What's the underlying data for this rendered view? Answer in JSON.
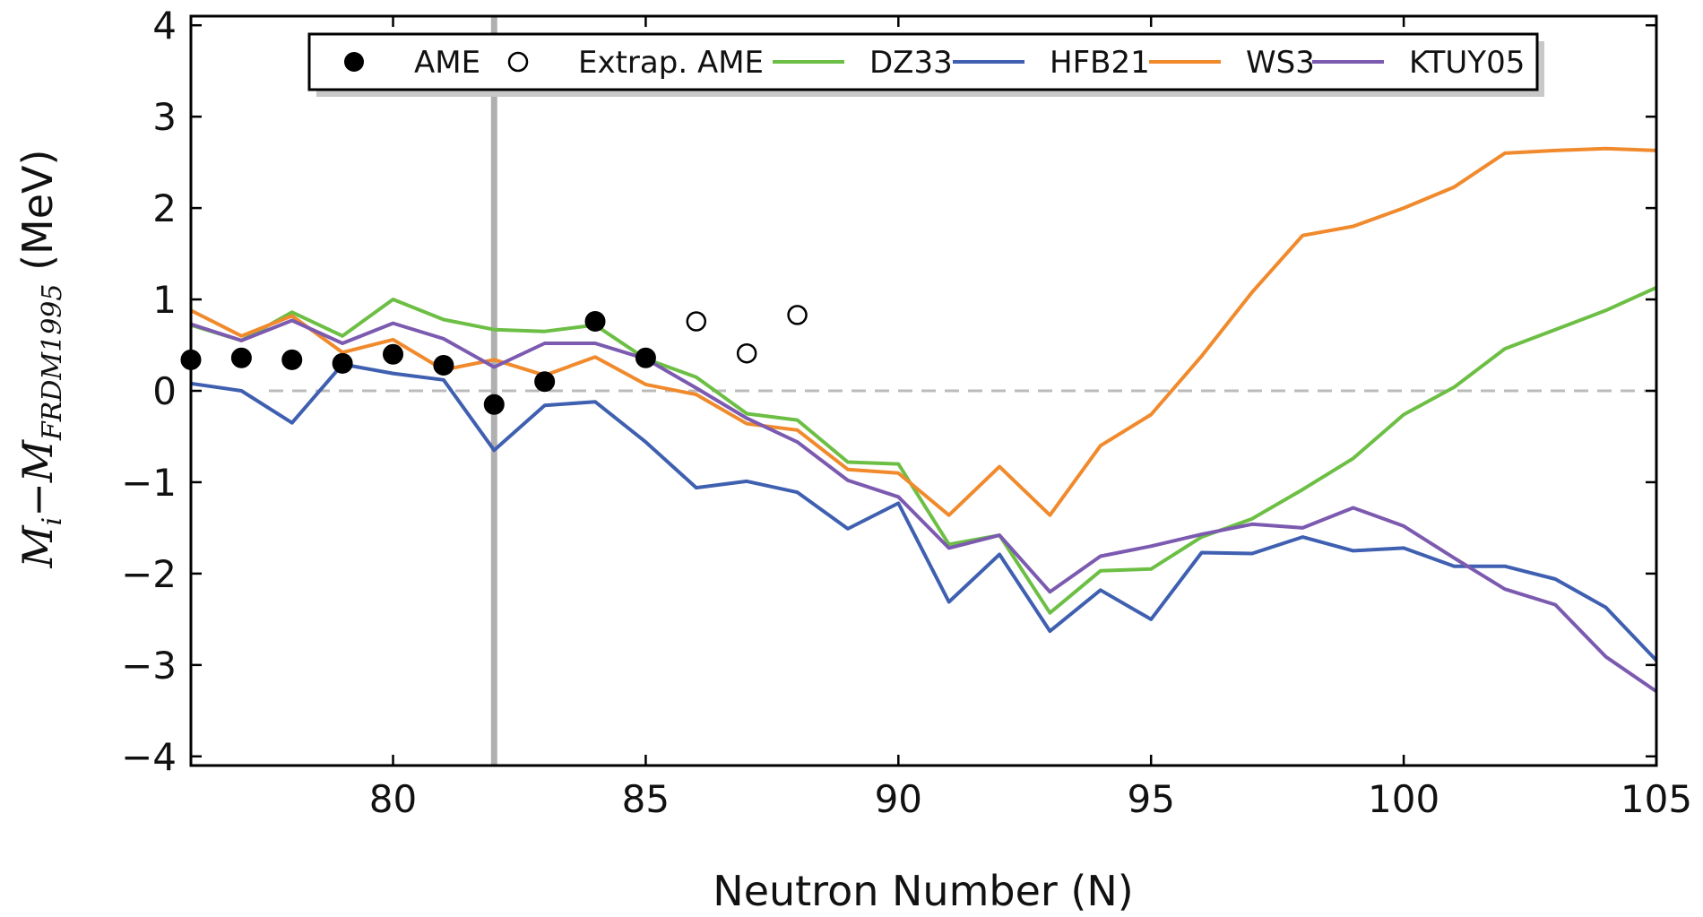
{
  "chart_data": {
    "type": "line",
    "xlabel": "Neutron Number (N)",
    "ylabel": {
      "M": "M",
      "i": "i",
      "minus": "−",
      "sub": "FRDM1995",
      "unit": " (MeV)"
    },
    "xlim": [
      76,
      105
    ],
    "ylim": [
      -4.1,
      4.1
    ],
    "x_ticks": [
      80,
      85,
      90,
      95,
      100,
      105
    ],
    "y_ticks": [
      -4,
      -3,
      -2,
      -1,
      0,
      1,
      2,
      3,
      4
    ],
    "x_tick_labels": [
      "80",
      "85",
      "90",
      "95",
      "100",
      "105"
    ],
    "y_tick_labels": [
      "−4",
      "−3",
      "−2",
      "−1",
      "0",
      "1",
      "2",
      "3",
      "4"
    ],
    "zero_line": {
      "y": 0,
      "color": "#bbbbbb",
      "style": "dashed"
    },
    "vertical_line": {
      "x": 82,
      "color": "#b0b0b0"
    },
    "legend": {
      "placement": "top"
    },
    "scatter_series": [
      {
        "name": "AME",
        "marker": "filled-circle",
        "color": "#000000",
        "points": [
          [
            76,
            0.34
          ],
          [
            77,
            0.36
          ],
          [
            78,
            0.34
          ],
          [
            79,
            0.3
          ],
          [
            80,
            0.4
          ],
          [
            81,
            0.28
          ],
          [
            82,
            -0.15
          ],
          [
            83,
            0.1
          ],
          [
            84,
            0.76
          ],
          [
            85,
            0.36
          ]
        ]
      },
      {
        "name": "Extrap. AME",
        "marker": "open-circle",
        "color": "#000000",
        "points": [
          [
            86,
            0.76
          ],
          [
            87,
            0.41
          ],
          [
            88,
            0.83
          ]
        ]
      }
    ],
    "x": [
      76,
      77,
      78,
      79,
      80,
      81,
      82,
      83,
      84,
      85,
      86,
      87,
      88,
      89,
      90,
      91,
      92,
      93,
      94,
      95,
      96,
      97,
      98,
      99,
      100,
      101,
      102,
      103,
      104,
      105
    ],
    "series": [
      {
        "name": "DZ33",
        "color": "#6cbf44",
        "values": [
          0.72,
          0.55,
          0.86,
          0.6,
          1.0,
          0.78,
          0.67,
          0.65,
          0.72,
          0.35,
          0.15,
          -0.25,
          -0.32,
          -0.78,
          -0.8,
          -1.68,
          -1.58,
          -2.43,
          -1.97,
          -1.95,
          -1.6,
          -1.4,
          -1.08,
          -0.74,
          -0.26,
          0.04,
          0.46,
          0.67,
          0.88,
          1.13
        ]
      },
      {
        "name": "HFB21",
        "color": "#3f5fb0",
        "values": [
          0.08,
          0.0,
          -0.35,
          0.29,
          0.19,
          0.12,
          -0.65,
          -0.16,
          -0.12,
          -0.56,
          -1.06,
          -0.99,
          -1.11,
          -1.51,
          -1.23,
          -2.31,
          -1.79,
          -2.63,
          -2.18,
          -2.5,
          -1.77,
          -1.78,
          -1.6,
          -1.75,
          -1.72,
          -1.92,
          -1.92,
          -2.06,
          -2.37,
          -2.95
        ]
      },
      {
        "name": "WS3",
        "color": "#f08a2c",
        "values": [
          0.88,
          0.6,
          0.82,
          0.42,
          0.56,
          0.23,
          0.34,
          0.17,
          0.37,
          0.07,
          -0.04,
          -0.36,
          -0.43,
          -0.86,
          -0.9,
          -1.36,
          -0.83,
          -1.36,
          -0.6,
          -0.26,
          0.38,
          1.08,
          1.7,
          1.8,
          2.0,
          2.23,
          2.6,
          2.63,
          2.65,
          2.63
        ]
      },
      {
        "name": "KTUY05",
        "color": "#7b5ab0",
        "values": [
          0.73,
          0.55,
          0.77,
          0.52,
          0.74,
          0.57,
          0.26,
          0.52,
          0.52,
          0.35,
          0.03,
          -0.3,
          -0.56,
          -0.98,
          -1.16,
          -1.72,
          -1.58,
          -2.2,
          -1.81,
          -1.7,
          -1.57,
          -1.46,
          -1.5,
          -1.28,
          -1.48,
          -1.83,
          -2.17,
          -2.34,
          -2.91,
          -3.29
        ]
      }
    ]
  }
}
